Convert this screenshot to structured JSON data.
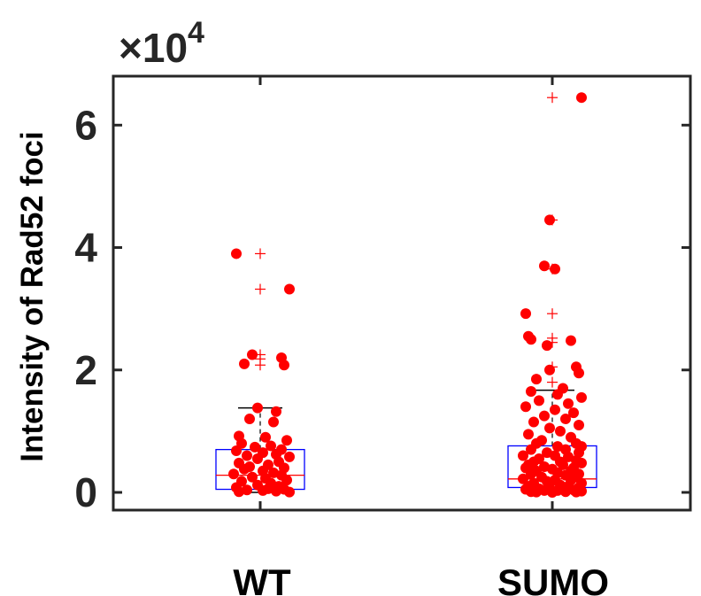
{
  "chart_data": {
    "type": "box",
    "categories": [
      "WT",
      "SUMO"
    ],
    "ylabel": "Intensity of Rad52 foci",
    "xlabel": "",
    "title": "",
    "y_multiplier_label": "×10",
    "y_multiplier_exponent": "4",
    "ylim": [
      0,
      68000
    ],
    "yticks": [
      0,
      20000,
      40000,
      60000
    ],
    "ytick_labels": [
      "0",
      "2",
      "4",
      "6"
    ],
    "grid": false,
    "colors": {
      "box": "#0000ff",
      "median": "#ff0000",
      "whisker": "#000000",
      "outlier": "#ff0000",
      "points": "#ff0000",
      "axes": "#262626"
    },
    "boxes": [
      {
        "name": "WT",
        "q1": 500,
        "median": 2800,
        "q3": 7000,
        "whisker_low": 0,
        "whisker_high": 13800,
        "outliers": [
          39000,
          33200,
          22500,
          21800,
          20800
        ]
      },
      {
        "name": "SUMO",
        "q1": 800,
        "median": 2200,
        "q3": 7600,
        "whisker_low": 0,
        "whisker_high": 16700,
        "outliers": [
          64500,
          44500,
          36500,
          29200,
          25200,
          24500,
          20500,
          18000
        ]
      }
    ],
    "points": [
      {
        "name": "WT",
        "values": [
          39000,
          33200,
          22500,
          22000,
          21000,
          20800,
          13800,
          13200,
          12000,
          11500,
          9200,
          9000,
          8500,
          8000,
          7600,
          7400,
          7000,
          6800,
          6500,
          6200,
          6000,
          5800,
          5500,
          5000,
          4800,
          4500,
          4200,
          4000,
          3800,
          3500,
          3200,
          3000,
          2800,
          2500,
          2300,
          2000,
          1800,
          1500,
          1200,
          1000,
          800,
          600,
          500,
          400,
          300,
          200,
          100,
          50
        ],
        "jitter": [
          -0.45,
          0.55,
          -0.15,
          0.4,
          -0.3,
          0.45,
          -0.05,
          0.3,
          -0.2,
          0.25,
          -0.4,
          0.1,
          0.5,
          -0.35,
          0.2,
          -0.1,
          0.4,
          -0.45,
          0.05,
          0.3,
          -0.25,
          0.55,
          -0.05,
          0.35,
          -0.4,
          0.15,
          -0.2,
          0.45,
          -0.3,
          0.05,
          0.25,
          -0.5,
          0.4,
          -0.15,
          0.1,
          0.5,
          -0.35,
          0.2,
          -0.05,
          0.35,
          -0.45,
          0.15,
          0.45,
          -0.25,
          0.05,
          0.3,
          -0.4,
          0.55
        ]
      },
      {
        "name": "SUMO",
        "values": [
          64500,
          44500,
          37000,
          36500,
          29200,
          25500,
          25000,
          24800,
          24000,
          20500,
          20000,
          19500,
          18500,
          17000,
          16500,
          16000,
          15500,
          15000,
          14500,
          14000,
          13500,
          13000,
          12500,
          12000,
          11500,
          11000,
          10500,
          10000,
          9500,
          9000,
          8500,
          8000,
          8000,
          7500,
          7500,
          7000,
          7000,
          6500,
          6500,
          6000,
          6000,
          5800,
          5500,
          5200,
          5000,
          5000,
          4800,
          4500,
          4500,
          4200,
          4000,
          4000,
          3800,
          3500,
          3500,
          3200,
          3000,
          3000,
          2800,
          2500,
          2500,
          2200,
          2000,
          2000,
          1800,
          1500,
          1500,
          1200,
          1000,
          1000,
          800,
          800,
          600,
          500,
          500,
          400,
          300,
          300,
          200,
          100,
          100,
          50,
          50,
          0
        ],
        "jitter": [
          0.55,
          -0.05,
          -0.15,
          0.05,
          -0.5,
          -0.45,
          -0.4,
          0.35,
          -0.1,
          0.45,
          -0.05,
          0.5,
          -0.3,
          0.2,
          -0.4,
          0.1,
          0.55,
          -0.25,
          0.3,
          -0.5,
          0.05,
          0.4,
          -0.15,
          0.25,
          -0.35,
          0.5,
          -0.05,
          0.15,
          -0.45,
          0.35,
          -0.2,
          0.45,
          -0.3,
          0.1,
          0.55,
          -0.4,
          0.25,
          -0.1,
          0.5,
          -0.55,
          0.05,
          0.3,
          -0.25,
          0.45,
          -0.35,
          0.15,
          0.55,
          -0.45,
          0.2,
          -0.15,
          0.4,
          -0.5,
          0.0,
          0.35,
          -0.3,
          0.1,
          0.5,
          -0.4,
          0.25,
          -0.2,
          0.45,
          -0.55,
          0.05,
          0.35,
          -0.1,
          0.55,
          -0.35,
          0.15,
          -0.45,
          0.3,
          -0.05,
          0.5,
          -0.25,
          0.2,
          -0.5,
          0.4,
          -0.15,
          0.1,
          0.55,
          -0.4,
          0.25,
          -0.3,
          0.45,
          0.0
        ]
      }
    ]
  }
}
